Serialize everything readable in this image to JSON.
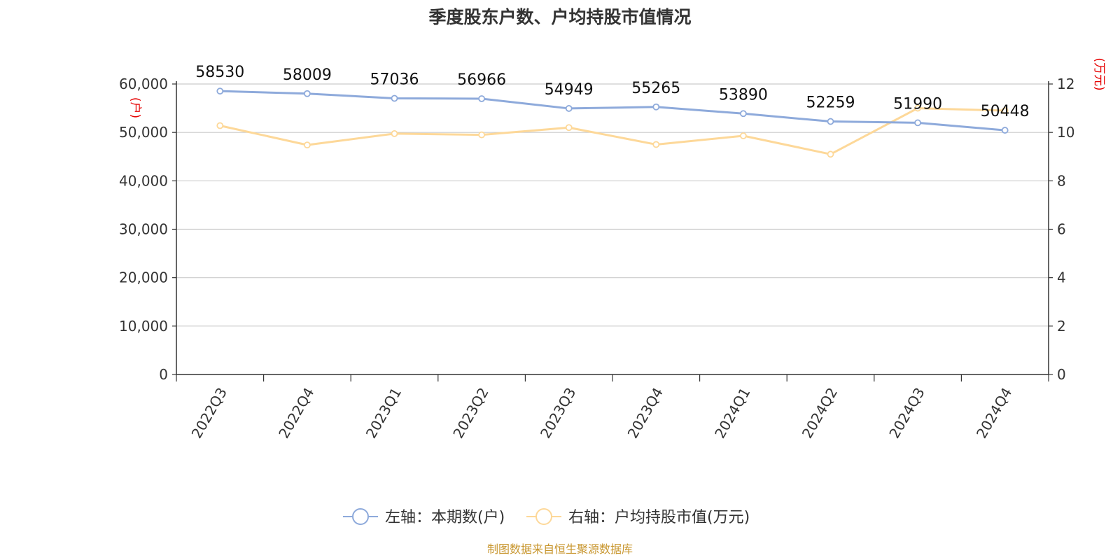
{
  "source": "制图数据来自恒生聚源数据库",
  "chart_data": {
    "type": "line",
    "title": "季度股东户数、户均持股市值情况",
    "categories": [
      "2022Q3",
      "2022Q4",
      "2023Q1",
      "2023Q2",
      "2023Q3",
      "2023Q4",
      "2024Q1",
      "2024Q2",
      "2024Q3",
      "2024Q4"
    ],
    "left_axis": {
      "unit": "(户)",
      "ylim": [
        0,
        60000
      ],
      "ticks": [
        0,
        10000,
        20000,
        30000,
        40000,
        50000,
        60000
      ],
      "tick_labels": [
        "0",
        "10,000",
        "20,000",
        "30,000",
        "40,000",
        "50,000",
        "60,000"
      ]
    },
    "right_axis": {
      "unit": "(万元)",
      "ylim": [
        0,
        12
      ],
      "ticks": [
        0,
        2,
        4,
        6,
        8,
        10,
        12
      ],
      "tick_labels": [
        "0",
        "2",
        "4",
        "6",
        "8",
        "10",
        "12"
      ]
    },
    "series": [
      {
        "name": "左轴：本期数(户)",
        "axis": "left",
        "color": "#8eaadb",
        "values": [
          58530,
          58009,
          57036,
          56966,
          54949,
          55265,
          53890,
          52259,
          51990,
          50448
        ],
        "labels": [
          "58530",
          "58009",
          "57036",
          "56966",
          "54949",
          "55265",
          "53890",
          "52259",
          "51990",
          "50448"
        ]
      },
      {
        "name": "右轴：户均持股市值(万元)",
        "axis": "right",
        "color": "#fdd899",
        "values": [
          10.28,
          9.48,
          9.95,
          9.9,
          10.2,
          9.5,
          9.86,
          9.1,
          11.0,
          10.9
        ]
      }
    ],
    "grid": true,
    "legend_position": "bottom"
  }
}
